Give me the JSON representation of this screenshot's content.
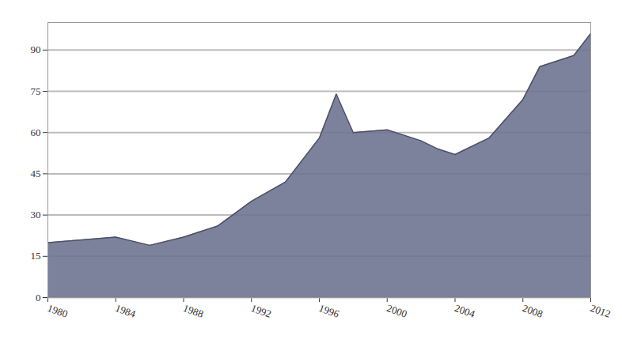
{
  "chart_data": {
    "type": "area",
    "x": [
      1980,
      1982,
      1984,
      1986,
      1988,
      1990,
      1992,
      1994,
      1996,
      1997,
      1998,
      2000,
      2002,
      2003,
      2004,
      2006,
      2008,
      2009,
      2010,
      2011,
      2012
    ],
    "values": [
      20,
      21,
      22,
      19,
      22,
      26,
      35,
      42,
      58,
      74,
      60,
      61,
      57,
      54,
      52,
      58,
      72,
      84,
      86,
      88,
      96
    ],
    "color": "#6e7391",
    "xlim": [
      1980,
      2012
    ],
    "xticks": [
      1980,
      1984,
      1988,
      1992,
      1996,
      2000,
      2004,
      2008,
      2012
    ],
    "ylim": [
      0,
      100
    ],
    "yticks": [
      0,
      15,
      30,
      45,
      60,
      75,
      90
    ],
    "grid": true
  }
}
